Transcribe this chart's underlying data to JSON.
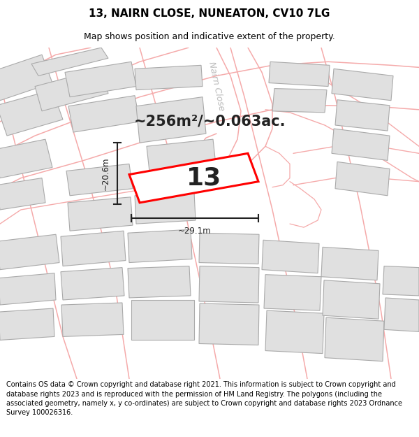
{
  "title": "13, NAIRN CLOSE, NUNEATON, CV10 7LG",
  "subtitle": "Map shows position and indicative extent of the property.",
  "footer": "Contains OS data © Crown copyright and database right 2021. This information is subject to Crown copyright and database rights 2023 and is reproduced with the permission of HM Land Registry. The polygons (including the associated geometry, namely x, y co-ordinates) are subject to Crown copyright and database rights 2023 Ordnance Survey 100026316.",
  "area_text": "~256m²/~0.063ac.",
  "label_number": "13",
  "dim_width": "~29.1m",
  "dim_height": "~20.6m",
  "road_label": "Nairn Close",
  "bg_color": "#ffffff",
  "map_bg": "#ffffff",
  "building_fill": "#e0e0e0",
  "building_edge": "#aaaaaa",
  "road_line_color": "#f5aaaa",
  "highlight_color": "#ff0000",
  "dim_color": "#222222",
  "title_fontsize": 11,
  "subtitle_fontsize": 9,
  "footer_fontsize": 7.0,
  "area_fontsize": 15,
  "number_fontsize": 26,
  "road_label_fontsize": 9,
  "road_label_color": "#bbbbbb"
}
